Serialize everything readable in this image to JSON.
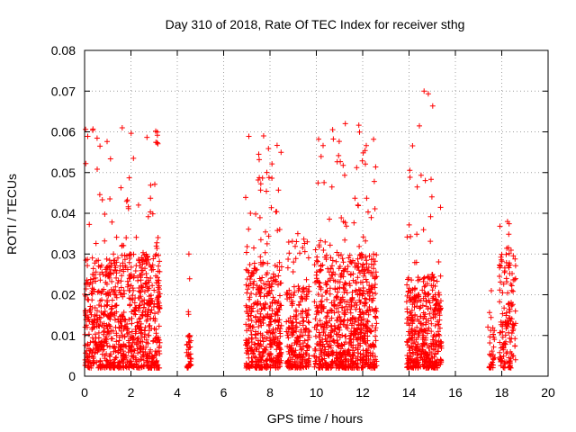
{
  "chart_data": {
    "type": "scatter",
    "title": "Day 310 of 2018, Rate Of TEC Index for receiver sthg",
    "xlabel": "GPS time / hours",
    "ylabel": "ROTI / TECUs",
    "xlim": [
      0,
      20
    ],
    "ylim": [
      0,
      0.08
    ],
    "xticks": [
      0,
      2,
      4,
      6,
      8,
      10,
      12,
      14,
      16,
      18,
      20
    ],
    "yticks": [
      0,
      0.01,
      0.02,
      0.03,
      0.04,
      0.05,
      0.06,
      0.07,
      0.08
    ],
    "xtick_labels": [
      "0",
      "2",
      "4",
      "6",
      "8",
      "10",
      "12",
      "14",
      "16",
      "18",
      "20"
    ],
    "ytick_labels": [
      "0",
      "0.01",
      "0.02",
      "0.03",
      "0.04",
      "0.05",
      "0.06",
      "0.07",
      "0.08"
    ],
    "grid": true,
    "marker": "plus",
    "color": "#ff0000",
    "series": [
      {
        "name": "ROTI",
        "clusters": [
          {
            "x": [
              0.0,
              3.25
            ],
            "y": [
              0.002,
              0.03
            ],
            "n": 900,
            "peak_y": 0.061
          },
          {
            "x": [
              4.4,
              4.6
            ],
            "y": [
              0.002,
              0.01
            ],
            "n": 40,
            "peak_y": 0.03
          },
          {
            "x": [
              6.95,
              8.5
            ],
            "y": [
              0.002,
              0.028
            ],
            "n": 450,
            "peak_y": 0.059
          },
          {
            "x": [
              8.7,
              9.7
            ],
            "y": [
              0.002,
              0.022
            ],
            "n": 250,
            "peak_y": 0.035
          },
          {
            "x": [
              9.9,
              12.6
            ],
            "y": [
              0.002,
              0.03
            ],
            "n": 800,
            "peak_y": 0.062
          },
          {
            "x": [
              13.9,
              15.4
            ],
            "y": [
              0.002,
              0.025
            ],
            "n": 450,
            "peak_y": 0.07
          },
          {
            "x": [
              17.4,
              17.7
            ],
            "y": [
              0.002,
              0.014
            ],
            "n": 30,
            "peak_y": 0.021
          },
          {
            "x": [
              17.9,
              18.6
            ],
            "y": [
              0.002,
              0.03
            ],
            "n": 150,
            "peak_y": 0.038
          }
        ]
      }
    ]
  }
}
